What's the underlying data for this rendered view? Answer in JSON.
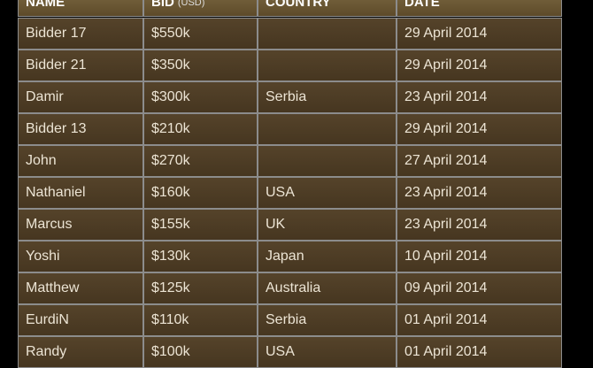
{
  "table": {
    "header": {
      "columns": [
        "NAME",
        "BID",
        "COUNTRY",
        "DATE"
      ],
      "bid_unit": "(USD)"
    },
    "rows": [
      [
        "Bidder 17",
        "$550k",
        null,
        "29 April 2014"
      ],
      [
        "Bidder 21",
        "$350k",
        null,
        "29 April 2014"
      ],
      [
        "Damir",
        "$300k",
        "Serbia",
        "23 April 2014"
      ],
      [
        "Bidder 13",
        "$210k",
        null,
        "29 April 2014"
      ],
      [
        "John",
        "$270k",
        null,
        "27 April 2014"
      ],
      [
        "Nathaniel",
        "$160k",
        "USA",
        "23 April 2014"
      ],
      [
        "Marcus",
        "$155k",
        "UK",
        "23 April 2014"
      ],
      [
        "Yoshi",
        "$130k",
        "Japan",
        "10 April 2014"
      ],
      [
        "Matthew",
        "$125k",
        "Australia",
        "09 April 2014"
      ],
      [
        "EurdiN",
        "$110k",
        "Serbia",
        "01 April 2014"
      ],
      [
        "Randy",
        "$100k",
        "USA",
        "01 April 2014"
      ]
    ]
  }
}
